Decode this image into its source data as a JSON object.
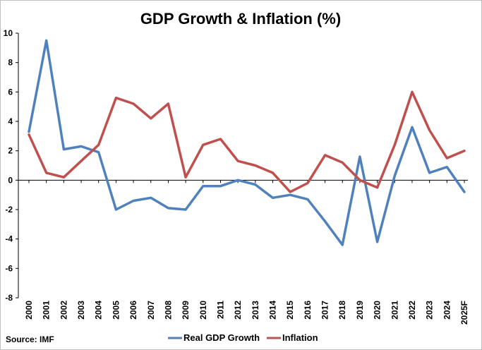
{
  "chart_data": {
    "type": "line",
    "title": "GDP Growth & Inflation (%)",
    "source": "Source: IMF",
    "xlabel": "",
    "ylabel": "",
    "ylim": [
      -8,
      10
    ],
    "yticks": [
      10,
      8,
      6,
      4,
      2,
      0,
      -2,
      -4,
      -6,
      -8
    ],
    "grid": false,
    "legend_position": "bottom",
    "categories": [
      "2000",
      "2001",
      "2002",
      "2003",
      "2004",
      "2005",
      "2006",
      "2007",
      "2008",
      "2009",
      "2010",
      "2011",
      "2012",
      "2013",
      "2014",
      "2015",
      "2016",
      "2017",
      "2018",
      "2019",
      "2020",
      "2021",
      "2022",
      "2023",
      "2024",
      "2025F"
    ],
    "series": [
      {
        "name": "Real GDP Growth",
        "color": "#4f81bd",
        "values": [
          3.3,
          9.5,
          2.1,
          2.3,
          1.9,
          -2.0,
          -1.4,
          -1.2,
          -1.9,
          -2.0,
          -0.4,
          -0.4,
          0.0,
          -0.3,
          -1.2,
          -1.0,
          -1.3,
          -2.8,
          -4.4,
          1.6,
          -4.2,
          0.3,
          3.6,
          0.5,
          0.9,
          -0.8
        ]
      },
      {
        "name": "Inflation",
        "color": "#c0504d",
        "values": [
          3.1,
          0.5,
          0.2,
          1.3,
          2.4,
          5.6,
          5.2,
          4.2,
          5.2,
          0.2,
          2.4,
          2.8,
          1.3,
          1.0,
          0.5,
          -0.8,
          -0.2,
          1.7,
          1.2,
          0.0,
          -0.5,
          2.4,
          6.0,
          3.4,
          1.5,
          2.0
        ]
      }
    ]
  }
}
